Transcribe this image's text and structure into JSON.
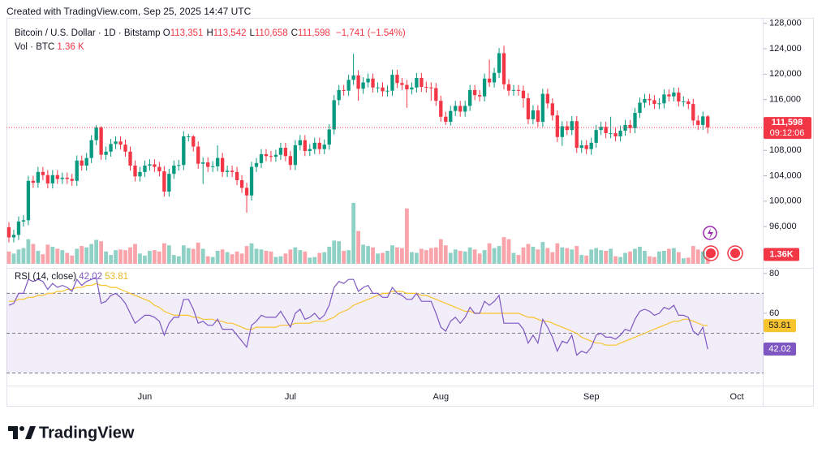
{
  "chart_data": {
    "type": "candlestick",
    "created": "Created with TradingView.com, Sep 25, 2025 14:47 UTC",
    "title": "Bitcoin / U.S. Dollar · 1D · Bitstamp",
    "ohlc": [
      {
        "key": "O",
        "value": "113,351"
      },
      {
        "key": "H",
        "value": "113,542"
      },
      {
        "key": "L",
        "value": "110,658"
      },
      {
        "key": "C",
        "value": "111,598"
      }
    ],
    "change": "−1,741 (−1.54%)",
    "brand": "TradingView",
    "up_color": "#089981",
    "down_color": "#f23645",
    "last_price_label": "111,598",
    "countdown": "09:12:06",
    "categories": [
      null,
      null,
      null,
      null,
      null,
      null,
      null,
      null,
      null,
      null,
      null,
      null,
      null,
      null,
      null,
      null,
      null,
      null,
      null,
      null,
      null,
      null,
      null,
      null,
      null,
      null,
      null,
      null,
      "Jun",
      null,
      null,
      null,
      null,
      null,
      null,
      null,
      null,
      null,
      null,
      null,
      null,
      null,
      null,
      null,
      null,
      null,
      null,
      null,
      null,
      null,
      null,
      null,
      null,
      null,
      null,
      null,
      null,
      null,
      "Jul",
      null,
      null,
      null,
      null,
      null,
      null,
      null,
      null,
      null,
      null,
      null,
      null,
      null,
      null,
      null,
      null,
      null,
      null,
      null,
      null,
      null,
      null,
      null,
      null,
      null,
      null,
      null,
      null,
      null,
      null,
      "Aug",
      null,
      null,
      null,
      null,
      null,
      null,
      null,
      null,
      null,
      null,
      null,
      null,
      null,
      null,
      null,
      null,
      null,
      null,
      null,
      null,
      null,
      null,
      null,
      null,
      null,
      null,
      null,
      null,
      null,
      null,
      "Sep",
      null,
      null,
      null,
      null,
      null,
      null,
      null,
      null,
      null,
      null,
      null,
      null,
      null,
      null,
      null,
      null,
      null,
      null,
      null,
      null,
      null,
      null,
      null,
      null,
      null,
      null,
      null,
      null,
      null,
      "Oct",
      null,
      null,
      null,
      null,
      null
    ],
    "open": [
      95900,
      94300,
      94700,
      96800,
      97000,
      103200,
      102900,
      104600,
      104100,
      102800,
      104100,
      103500,
      103700,
      103500,
      103200,
      106400,
      105600,
      106800,
      109600,
      111600,
      107300,
      107800,
      109000,
      109400,
      108900,
      107800,
      105600,
      103900,
      104600,
      105600,
      105800,
      105400,
      104700,
      101500,
      104300,
      105600,
      105700,
      110200,
      110200,
      108600,
      105900,
      106100,
      105400,
      105500,
      106800,
      104600,
      104800,
      104600,
      103300,
      102100,
      100900,
      105400,
      106000,
      107400,
      107100,
      107000,
      107300,
      108400,
      107100,
      105700,
      108800,
      109600,
      107900,
      108200,
      109200,
      108200,
      108900,
      111300,
      115900,
      117500,
      117400,
      119100,
      119800,
      117700,
      118700,
      119300,
      117900,
      117900,
      117300,
      117400,
      119900,
      118600,
      118300,
      117600,
      117900,
      119400,
      118000,
      117900,
      117800,
      115800,
      113300,
      112500,
      114200,
      115000,
      114100,
      115000,
      117500,
      116700,
      116500,
      119300,
      118700,
      120200,
      123300,
      118400,
      117400,
      117500,
      117400,
      116200,
      112900,
      114300,
      112500,
      116900,
      115400,
      113500,
      110100,
      111800,
      111200,
      112600,
      108400,
      108800,
      108200,
      109200,
      111200,
      111700,
      110700,
      110700,
      110200,
      111100,
      112000,
      111500,
      113900,
      115500,
      116100,
      115900,
      115300,
      115400,
      116800,
      116500,
      117100,
      115700,
      115700,
      115300,
      112700,
      112000,
      113351,
      null,
      null,
      null,
      null,
      null,
      null,
      null,
      null,
      null,
      null,
      null
    ],
    "high": [
      96700,
      95500,
      97600,
      97800,
      104000,
      104000,
      105400,
      105400,
      104900,
      104900,
      104900,
      104500,
      104500,
      104300,
      107200,
      107200,
      107600,
      110400,
      111980,
      111800,
      108600,
      109800,
      110200,
      110200,
      109700,
      108600,
      106400,
      105400,
      106400,
      106600,
      106600,
      106200,
      105500,
      105100,
      106400,
      106500,
      111000,
      110600,
      110400,
      109400,
      106900,
      106900,
      106300,
      108800,
      107600,
      105600,
      105600,
      105400,
      104100,
      102900,
      106200,
      106800,
      108200,
      108200,
      107900,
      108100,
      109200,
      109200,
      107900,
      109600,
      110400,
      110400,
      109000,
      110000,
      110000,
      109700,
      112100,
      116700,
      118300,
      118300,
      119900,
      123200,
      120600,
      119500,
      120100,
      120100,
      118700,
      118700,
      118200,
      120700,
      120700,
      119400,
      119100,
      118700,
      120200,
      120200,
      118800,
      118700,
      118600,
      116600,
      114100,
      115000,
      115800,
      115800,
      115800,
      118300,
      118300,
      117500,
      120100,
      122300,
      121000,
      124100,
      124470,
      119200,
      118300,
      118300,
      118200,
      117000,
      115100,
      115100,
      117700,
      117700,
      116200,
      114300,
      112600,
      112600,
      113400,
      113400,
      109600,
      109600,
      110000,
      112000,
      112500,
      112500,
      113300,
      111500,
      111900,
      112800,
      112800,
      114700,
      116300,
      116900,
      116900,
      116700,
      116200,
      117600,
      117600,
      117900,
      117900,
      116500,
      116100,
      116100,
      113500,
      114100,
      113542,
      null,
      null,
      null,
      null,
      null,
      null,
      null,
      null,
      null,
      null,
      null
    ],
    "low": [
      93500,
      93500,
      93900,
      96000,
      96200,
      102100,
      102100,
      103300,
      102000,
      102000,
      102700,
      102700,
      102700,
      102400,
      102400,
      104800,
      104800,
      106000,
      108800,
      106500,
      106500,
      107000,
      108200,
      108100,
      107000,
      104800,
      103100,
      103100,
      103800,
      104800,
      104600,
      103900,
      100700,
      100700,
      103500,
      104800,
      104900,
      109400,
      107800,
      105100,
      102700,
      104600,
      104600,
      104700,
      103800,
      103800,
      103800,
      102500,
      101300,
      98200,
      100100,
      104600,
      105200,
      106300,
      106200,
      106200,
      106500,
      106300,
      104900,
      104900,
      108000,
      107100,
      107100,
      107400,
      107400,
      107400,
      108100,
      110500,
      115100,
      116600,
      116600,
      118300,
      115800,
      116900,
      117900,
      117100,
      117100,
      116500,
      116500,
      116600,
      117800,
      117500,
      114700,
      116800,
      117100,
      117200,
      117100,
      115800,
      115000,
      112500,
      112000,
      111900,
      113400,
      113300,
      113300,
      114200,
      115900,
      115700,
      115700,
      118000,
      117900,
      119400,
      117600,
      116600,
      116600,
      116600,
      114700,
      112100,
      112100,
      111700,
      111700,
      114600,
      112700,
      109300,
      108700,
      110400,
      110400,
      107600,
      107600,
      107400,
      107300,
      108400,
      110400,
      109900,
      109900,
      109400,
      109400,
      110300,
      110700,
      110700,
      113100,
      114700,
      115100,
      114500,
      114500,
      114600,
      115700,
      115700,
      114900,
      114900,
      114500,
      111900,
      111200,
      111200,
      110658,
      null,
      null,
      null,
      null,
      null,
      null,
      null,
      null,
      null,
      null,
      null
    ],
    "close": [
      94300,
      94700,
      96800,
      97000,
      103200,
      102900,
      104600,
      104100,
      102800,
      104100,
      103500,
      103700,
      103500,
      103200,
      106400,
      105600,
      106800,
      109600,
      111600,
      107300,
      107800,
      109000,
      109400,
      108900,
      107800,
      105600,
      103900,
      104600,
      105600,
      105800,
      105400,
      104700,
      101500,
      104300,
      105600,
      105700,
      110200,
      110200,
      108600,
      105900,
      106100,
      105400,
      105500,
      106800,
      104600,
      104800,
      104600,
      103300,
      102100,
      100900,
      105400,
      106000,
      107400,
      107100,
      107000,
      107300,
      108400,
      107100,
      105700,
      108800,
      109600,
      107900,
      108200,
      109200,
      108200,
      108900,
      111300,
      115900,
      117500,
      117400,
      119100,
      119800,
      117700,
      118700,
      119300,
      117900,
      117900,
      117300,
      117400,
      119900,
      118600,
      118300,
      117600,
      117900,
      119400,
      118000,
      117900,
      117800,
      115800,
      113300,
      112500,
      114200,
      115000,
      114100,
      115000,
      117500,
      116700,
      116500,
      119300,
      118700,
      120200,
      123300,
      118400,
      117400,
      117500,
      117400,
      116200,
      112900,
      114300,
      112500,
      116900,
      115400,
      113500,
      110100,
      111800,
      111200,
      112600,
      108400,
      108800,
      108200,
      109200,
      111200,
      111700,
      110700,
      110700,
      110200,
      111100,
      112000,
      111500,
      113900,
      115500,
      116100,
      115900,
      115300,
      115400,
      116800,
      116500,
      117100,
      115700,
      115700,
      115300,
      112700,
      112000,
      113351,
      111598,
      null,
      null,
      null,
      null,
      null,
      null,
      null,
      null,
      null,
      null,
      null
    ],
    "ylim": [
      89500,
      128860
    ],
    "yticks": [
      {
        "value": 128000,
        "label": "128,000"
      },
      {
        "value": 124000,
        "label": "124,000"
      },
      {
        "value": 120000,
        "label": "120,000"
      },
      {
        "value": 116000,
        "label": "116,000"
      },
      {
        "value": 112000,
        "label": "112,000"
      },
      {
        "value": 108000,
        "label": "108,000"
      },
      {
        "value": 104000,
        "label": "104,000"
      },
      {
        "value": 100000,
        "label": "100,000"
      },
      {
        "value": 96000,
        "label": "96,000"
      }
    ],
    "volume": {
      "title": "Vol · BTC",
      "last_value_label": "1.36 K",
      "tag_label": "1.36K",
      "values": [
        1800,
        1500,
        2100,
        2300,
        3600,
        2900,
        1900,
        1400,
        2800,
        2500,
        2200,
        2000,
        1600,
        1200,
        2200,
        2600,
        2400,
        2900,
        3500,
        3300,
        1800,
        1300,
        2000,
        2100,
        2000,
        2400,
        2900,
        1500,
        1200,
        1900,
        2000,
        1800,
        3000,
        2700,
        1300,
        1100,
        2700,
        2300,
        2200,
        3100,
        2200,
        1100,
        1000,
        1900,
        2100,
        1700,
        1400,
        1800,
        1500,
        2600,
        3000,
        2200,
        2100,
        1900,
        1800,
        1000,
        1100,
        1500,
        2100,
        2400,
        2000,
        1800,
        900,
        1000,
        1600,
        1700,
        2500,
        3400,
        3300,
        1900,
        2000,
        8900,
        4800,
        2800,
        2600,
        2400,
        1500,
        1600,
        1900,
        2700,
        2400,
        2300,
        8100,
        1700,
        1600,
        2200,
        2000,
        2300,
        2400,
        3600,
        2700,
        1600,
        2100,
        1900,
        1800,
        2400,
        2100,
        1500,
        2000,
        3000,
        2300,
        2600,
        3900,
        3600,
        1600,
        1300,
        2400,
        2900,
        2500,
        2100,
        3200,
        2300,
        1700,
        3000,
        2400,
        2300,
        2100,
        2600,
        1300,
        1200,
        2100,
        2300,
        2000,
        1900,
        2200,
        1100,
        1000,
        1600,
        1800,
        2200,
        2500,
        1900,
        1100,
        1000,
        1800,
        1900,
        2200,
        2300,
        1700,
        800,
        900,
        2600,
        2100,
        1800,
        1360,
        null,
        null,
        null,
        null,
        null,
        null,
        null,
        null,
        null,
        null,
        null
      ]
    },
    "rsi": {
      "title": "RSI (14, close)",
      "ylim": [
        23.7,
        82.4
      ],
      "yticks": [
        80,
        60
      ],
      "levels": [
        70,
        50,
        30
      ],
      "fill": "#7e57c2",
      "series": [
        {
          "color": "#7e57c2",
          "values": [
            64,
            65,
            70,
            70,
            77,
            76,
            77,
            76,
            72,
            75,
            73,
            74,
            73,
            71,
            77,
            74,
            76,
            77,
            78,
            65,
            66,
            69,
            70,
            68,
            65,
            60,
            55,
            57,
            59,
            59,
            58,
            56,
            49,
            55,
            58,
            58,
            67,
            67,
            62,
            55,
            56,
            54,
            54,
            57,
            52,
            52,
            52,
            49,
            46,
            43,
            54,
            56,
            59,
            58,
            58,
            58,
            61,
            57,
            53,
            60,
            62,
            57,
            58,
            60,
            57,
            59,
            64,
            73,
            76,
            75,
            77,
            77,
            71,
            73,
            74,
            70,
            70,
            68,
            68,
            73,
            70,
            69,
            67,
            67,
            70,
            66,
            66,
            66,
            60,
            53,
            51,
            56,
            58,
            55,
            58,
            63,
            60,
            60,
            66,
            64,
            66,
            69,
            55,
            55,
            55,
            55,
            52,
            45,
            49,
            45,
            57,
            53,
            48,
            41,
            46,
            45,
            49,
            39,
            41,
            40,
            43,
            49,
            50,
            48,
            48,
            47,
            49,
            52,
            51,
            57,
            61,
            62,
            61,
            59,
            60,
            63,
            62,
            64,
            59,
            59,
            58,
            51,
            49,
            53,
            42.02,
            null,
            null,
            null,
            null,
            null,
            null,
            null,
            null,
            null,
            null,
            null
          ]
        },
        {
          "color": "#f7c32e",
          "values": [
            66,
            66,
            67,
            67,
            68,
            68,
            69,
            69,
            70,
            70,
            71,
            71,
            72,
            72,
            73,
            73,
            74,
            74,
            75,
            74,
            74,
            73,
            73,
            72,
            71,
            70,
            69,
            68,
            67,
            66,
            64,
            63,
            61,
            60,
            59,
            59,
            59,
            59,
            58,
            58,
            57,
            57,
            57,
            56,
            56,
            55,
            55,
            54,
            53,
            52,
            52,
            53,
            53,
            53,
            53,
            53,
            54,
            54,
            54,
            55,
            55,
            55,
            55,
            56,
            56,
            56,
            57,
            58,
            60,
            61,
            62,
            64,
            65,
            66,
            67,
            68,
            69,
            70,
            70,
            71,
            71,
            71,
            70,
            70,
            70,
            69,
            69,
            68,
            67,
            66,
            65,
            64,
            63,
            62,
            61,
            61,
            60,
            60,
            60,
            60,
            60,
            60,
            60,
            60,
            60,
            60,
            59,
            58,
            58,
            57,
            56,
            56,
            55,
            54,
            53,
            52,
            51,
            50,
            48,
            47,
            46,
            45,
            45,
            44,
            44,
            44,
            45,
            46,
            47,
            48,
            49,
            50,
            51,
            52,
            53,
            54,
            55,
            56,
            56,
            57,
            57,
            56,
            55,
            54,
            53.81,
            null,
            null,
            null,
            null,
            null,
            null,
            null,
            null,
            null,
            null,
            null
          ]
        }
      ]
    }
  }
}
